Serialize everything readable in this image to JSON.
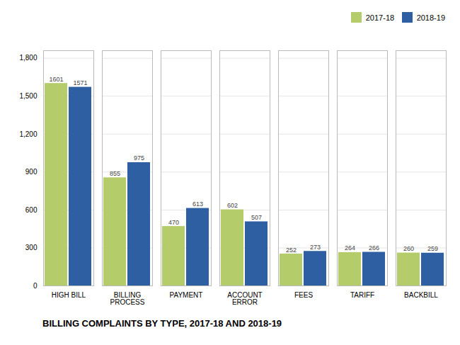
{
  "chart_data": {
    "type": "bar",
    "title": "BILLING COMPLAINTS BY TYPE, 2017-18 AND 2018-19",
    "categories": [
      "HIGH BILL",
      "BILLING\nPROCESS",
      "PAYMENT",
      "ACCOUNT\nERROR",
      "FEES",
      "TARIFF",
      "BACKBILL"
    ],
    "series": [
      {
        "name": "2017-18",
        "color": "#b5cc6a",
        "values": [
          1601,
          855,
          470,
          602,
          252,
          264,
          260
        ]
      },
      {
        "name": "2018-19",
        "color": "#2e5fa3",
        "values": [
          1571,
          975,
          613,
          507,
          273,
          266,
          259
        ]
      }
    ],
    "ylim": [
      0,
      1860
    ],
    "yticks": [
      0,
      300,
      600,
      900,
      {
        "value": 1200,
        "label": "1,200"
      },
      {
        "value": 1500,
        "label": "1,500"
      },
      {
        "value": 1800,
        "label": "1,800"
      }
    ],
    "grid": true,
    "legend": "upper right",
    "data_labels": true
  }
}
